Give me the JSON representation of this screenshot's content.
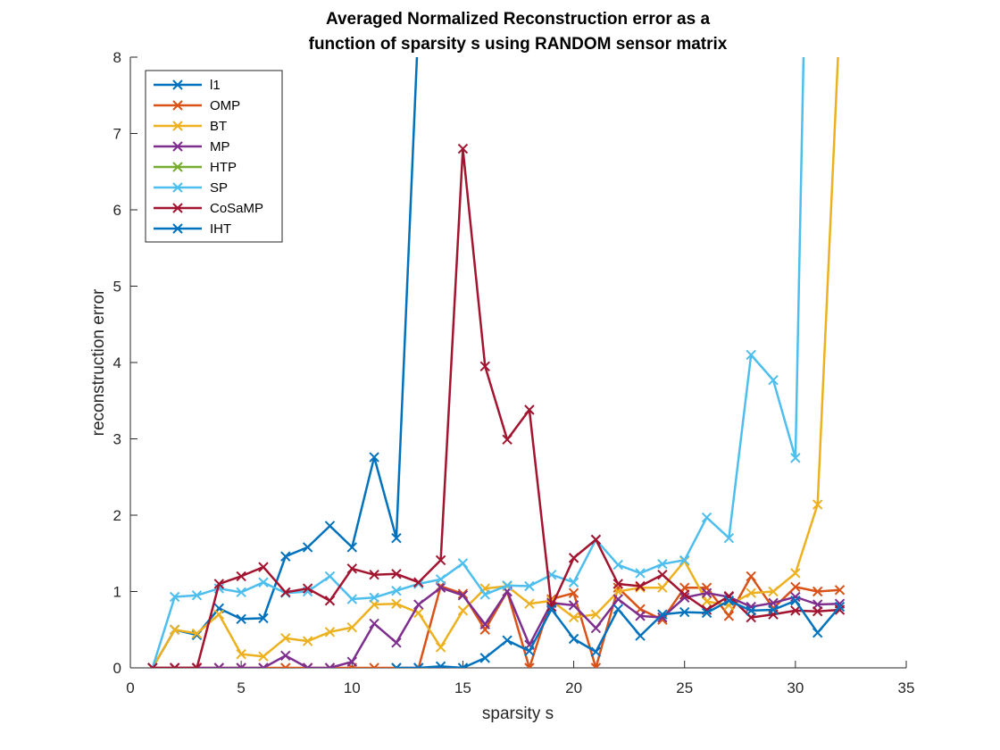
{
  "chart_data": {
    "type": "line",
    "title": [
      "Averaged Normalized Reconstruction error as a",
      "function of sparsity s using RANDOM sensor matrix"
    ],
    "xlabel": "sparsity s",
    "ylabel": "reconstruction error",
    "xlim": [
      0,
      35
    ],
    "ylim": [
      0,
      8
    ],
    "xticks": [
      0,
      5,
      10,
      15,
      20,
      25,
      30,
      35
    ],
    "yticks": [
      0,
      1,
      2,
      3,
      4,
      5,
      6,
      7,
      8
    ],
    "grid": false,
    "legend_position": "top-left",
    "marker": "x",
    "series": [
      {
        "name": "l1",
        "color": "#0072BD",
        "x": [
          1,
          2,
          3,
          4,
          5,
          6,
          7,
          8,
          9,
          10,
          11,
          12,
          13
        ],
        "y": [
          0,
          0.5,
          0.43,
          0.78,
          0.64,
          0.65,
          1.46,
          1.58,
          1.86,
          1.58,
          2.76,
          1.7,
          8.5
        ]
      },
      {
        "name": "OMP",
        "color": "#D95319",
        "x": [
          1,
          2,
          3,
          4,
          5,
          6,
          7,
          8,
          9,
          10,
          11,
          12,
          13,
          14,
          15,
          16,
          17,
          18,
          19,
          20,
          21,
          22,
          23,
          24,
          25,
          26,
          27,
          28,
          29,
          30,
          31,
          32
        ],
        "y": [
          0,
          0,
          0,
          0,
          0,
          0,
          0,
          0,
          0,
          0,
          0,
          0,
          0,
          1.07,
          0.97,
          0.5,
          1.0,
          0.0,
          0.9,
          0.98,
          0.0,
          1.05,
          0.77,
          0.63,
          1.05,
          1.05,
          0.68,
          1.2,
          0.78,
          1.06,
          1.0,
          1.02
        ]
      },
      {
        "name": "BT",
        "color": "#EDB120",
        "x": [
          1,
          2,
          3,
          4,
          5,
          6,
          7,
          8,
          9,
          10,
          11,
          12,
          13,
          14,
          15,
          16,
          17,
          18,
          19,
          20,
          21,
          22,
          23,
          24,
          25,
          26,
          27,
          28,
          29,
          30,
          31,
          32
        ],
        "y": [
          0,
          0.5,
          0.45,
          0.7,
          0.18,
          0.15,
          0.39,
          0.35,
          0.47,
          0.53,
          0.83,
          0.84,
          0.72,
          0.27,
          0.75,
          1.04,
          1.07,
          0.84,
          0.88,
          0.66,
          0.7,
          1.0,
          1.05,
          1.05,
          1.4,
          0.87,
          0.82,
          0.98,
          1.0,
          1.24,
          2.14,
          8.5
        ]
      },
      {
        "name": "MP",
        "color": "#7E2F8E",
        "x": [
          1,
          2,
          3,
          4,
          5,
          6,
          7,
          8,
          9,
          10,
          11,
          12,
          13,
          14,
          15,
          16,
          17,
          18,
          19,
          20,
          21,
          22,
          23,
          24,
          25,
          26,
          27,
          28,
          29,
          30,
          31,
          32
        ],
        "y": [
          0,
          0,
          0,
          0,
          0,
          0,
          0.16,
          0,
          0,
          0.08,
          0.58,
          0.33,
          0.83,
          1.05,
          0.95,
          0.57,
          1.0,
          0.3,
          0.85,
          0.82,
          0.52,
          0.9,
          0.68,
          0.66,
          0.92,
          0.98,
          0.93,
          0.8,
          0.85,
          0.93,
          0.83,
          0.84
        ]
      },
      {
        "name": "HTP",
        "color": "#77AC30",
        "x": [],
        "y": []
      },
      {
        "name": "SP",
        "color": "#4DBEEE",
        "x": [
          1,
          2,
          3,
          4,
          5,
          6,
          7,
          8,
          9,
          10,
          11,
          12,
          13,
          14,
          15,
          16,
          17,
          18,
          19,
          20,
          21,
          22,
          23,
          24,
          25,
          26,
          27,
          28,
          29,
          30,
          30.4
        ],
        "y": [
          0,
          0.93,
          0.95,
          1.04,
          0.99,
          1.12,
          0.98,
          1.0,
          1.2,
          0.9,
          0.92,
          1.01,
          1.1,
          1.16,
          1.37,
          0.96,
          1.08,
          1.07,
          1.22,
          1.12,
          1.68,
          1.35,
          1.24,
          1.36,
          1.41,
          1.97,
          1.7,
          4.1,
          3.77,
          2.75,
          8.5
        ]
      },
      {
        "name": "CoSaMP",
        "color": "#A2142F",
        "x": [
          1,
          2,
          3,
          4,
          5,
          6,
          7,
          8,
          9,
          10,
          11,
          12,
          13,
          14,
          15,
          16,
          17,
          18,
          19,
          20,
          21,
          22,
          23,
          24,
          25,
          26,
          27,
          28,
          29,
          30,
          31,
          32
        ],
        "y": [
          0,
          0,
          0,
          1.1,
          1.2,
          1.32,
          0.99,
          1.04,
          0.88,
          1.3,
          1.22,
          1.23,
          1.12,
          1.41,
          6.8,
          3.95,
          2.99,
          3.38,
          0.8,
          1.44,
          1.68,
          1.1,
          1.07,
          1.22,
          0.96,
          0.76,
          0.94,
          0.66,
          0.7,
          0.75,
          0.74,
          0.76
        ]
      },
      {
        "name": "IHT",
        "color": "#0072BD",
        "x": [
          12,
          13,
          14,
          15,
          16,
          17,
          18,
          19,
          20,
          21,
          22,
          23,
          24,
          25,
          26,
          27,
          28,
          29,
          30,
          31,
          32
        ],
        "y": [
          0,
          0,
          0.02,
          0,
          0.13,
          0.36,
          0.22,
          0.77,
          0.38,
          0.21,
          0.77,
          0.42,
          0.7,
          0.73,
          0.72,
          0.88,
          0.75,
          0.76,
          0.88,
          0.46,
          0.8
        ]
      }
    ]
  }
}
